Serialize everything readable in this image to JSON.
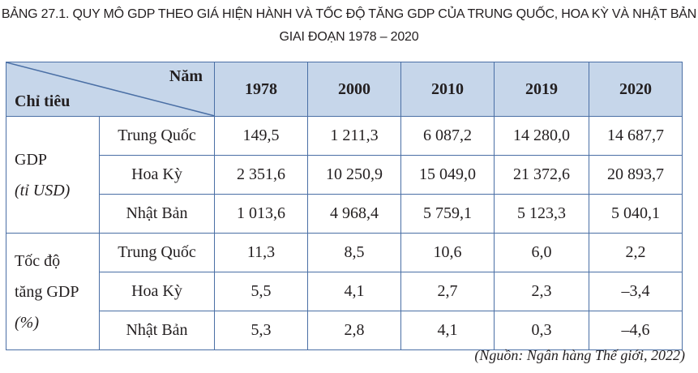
{
  "title": {
    "line1": "BẢNG 27.1. QUY MÔ GDP THEO GIÁ HIỆN HÀNH VÀ TỐC ĐỘ TĂNG GDP CỦA TRUNG QUỐC, HOA KỲ VÀ NHẬT BẢN",
    "line2": "GIAI ĐOẠN 1978 – 2020"
  },
  "header": {
    "year_label": "Năm",
    "indicator_label": "Chỉ tiêu",
    "years": [
      "1978",
      "2000",
      "2010",
      "2019",
      "2020"
    ]
  },
  "groups": [
    {
      "label": "GDP",
      "unit": "(tỉ USD)",
      "rows": [
        {
          "country": "Trung Quốc",
          "values": [
            "149,5",
            "1 211,3",
            "6 087,2",
            "14 280,0",
            "14 687,7"
          ]
        },
        {
          "country": "Hoa Kỳ",
          "values": [
            "2 351,6",
            "10 250,9",
            "15 049,0",
            "21 372,6",
            "20 893,7"
          ]
        },
        {
          "country": "Nhật Bản",
          "values": [
            "1 013,6",
            "4 968,4",
            "5 759,1",
            "5 123,3",
            "5 040,1"
          ]
        }
      ]
    },
    {
      "label_line1": "Tốc độ",
      "label_line2": "tăng GDP",
      "unit": "(%)",
      "rows": [
        {
          "country": "Trung Quốc",
          "values": [
            "11,3",
            "8,5",
            "10,6",
            "6,0",
            "2,2"
          ]
        },
        {
          "country": "Hoa Kỳ",
          "values": [
            "5,5",
            "4,1",
            "2,7",
            "2,3",
            "–3,4"
          ]
        },
        {
          "country": "Nhật Bản",
          "values": [
            "5,3",
            "2,8",
            "4,1",
            "0,3",
            "–4,6"
          ]
        }
      ]
    }
  ],
  "source": "(Nguồn: Ngân hàng Thế giới, 2022)"
}
